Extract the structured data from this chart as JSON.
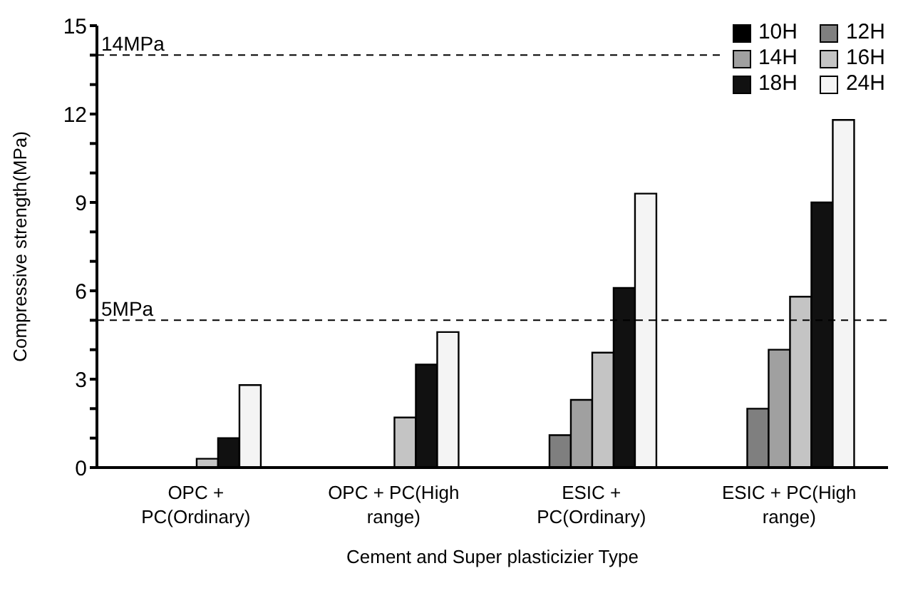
{
  "chart_data": {
    "type": "bar",
    "xlabel": "Cement and Super plasticizier Type",
    "ylabel": "Compressive strength(MPa)",
    "categories": [
      "OPC + PC(Ordinary)",
      "OPC + PC(High range)",
      "ESIC + PC(Ordinary)",
      "ESIC + PC(High range)"
    ],
    "series": [
      {
        "name": "10H",
        "color": "#000000",
        "values": [
          0,
          0,
          0,
          0
        ]
      },
      {
        "name": "12H",
        "color": "#7f7f7f",
        "values": [
          0,
          0,
          1.1,
          2.0
        ]
      },
      {
        "name": "14H",
        "color": "#a0a0a0",
        "values": [
          0,
          0,
          2.3,
          4.0
        ]
      },
      {
        "name": "16H",
        "color": "#c4c4c4",
        "values": [
          0.3,
          1.7,
          3.9,
          5.8
        ]
      },
      {
        "name": "18H",
        "color": "#111111",
        "values": [
          1.0,
          3.5,
          6.1,
          9.0
        ]
      },
      {
        "name": "24H",
        "color": "#f4f4f4",
        "values": [
          2.8,
          4.6,
          9.3,
          11.8
        ]
      }
    ],
    "ylim": [
      0,
      15
    ],
    "yticks": [
      0,
      {
        "value": 1,
        "label": null
      },
      {
        "value": 2,
        "label": null
      },
      3,
      {
        "value": 4,
        "label": null
      },
      {
        "value": 5,
        "label": null
      },
      6,
      {
        "value": 7,
        "label": null
      },
      {
        "value": 8,
        "label": null
      },
      9,
      {
        "value": 10,
        "label": null
      },
      {
        "value": 11,
        "label": null
      },
      12,
      {
        "value": 13,
        "label": null
      },
      {
        "value": 14,
        "label": null
      },
      15
    ],
    "ref_lines": [
      {
        "axis": "y",
        "value": 14,
        "label": "14MPa",
        "line_style": "dashed",
        "color": "#000000"
      },
      {
        "axis": "y",
        "value": 5,
        "label": "5MPa",
        "line_style": "dashed",
        "color": "#000000"
      }
    ],
    "grid": false,
    "legend": "top right"
  }
}
